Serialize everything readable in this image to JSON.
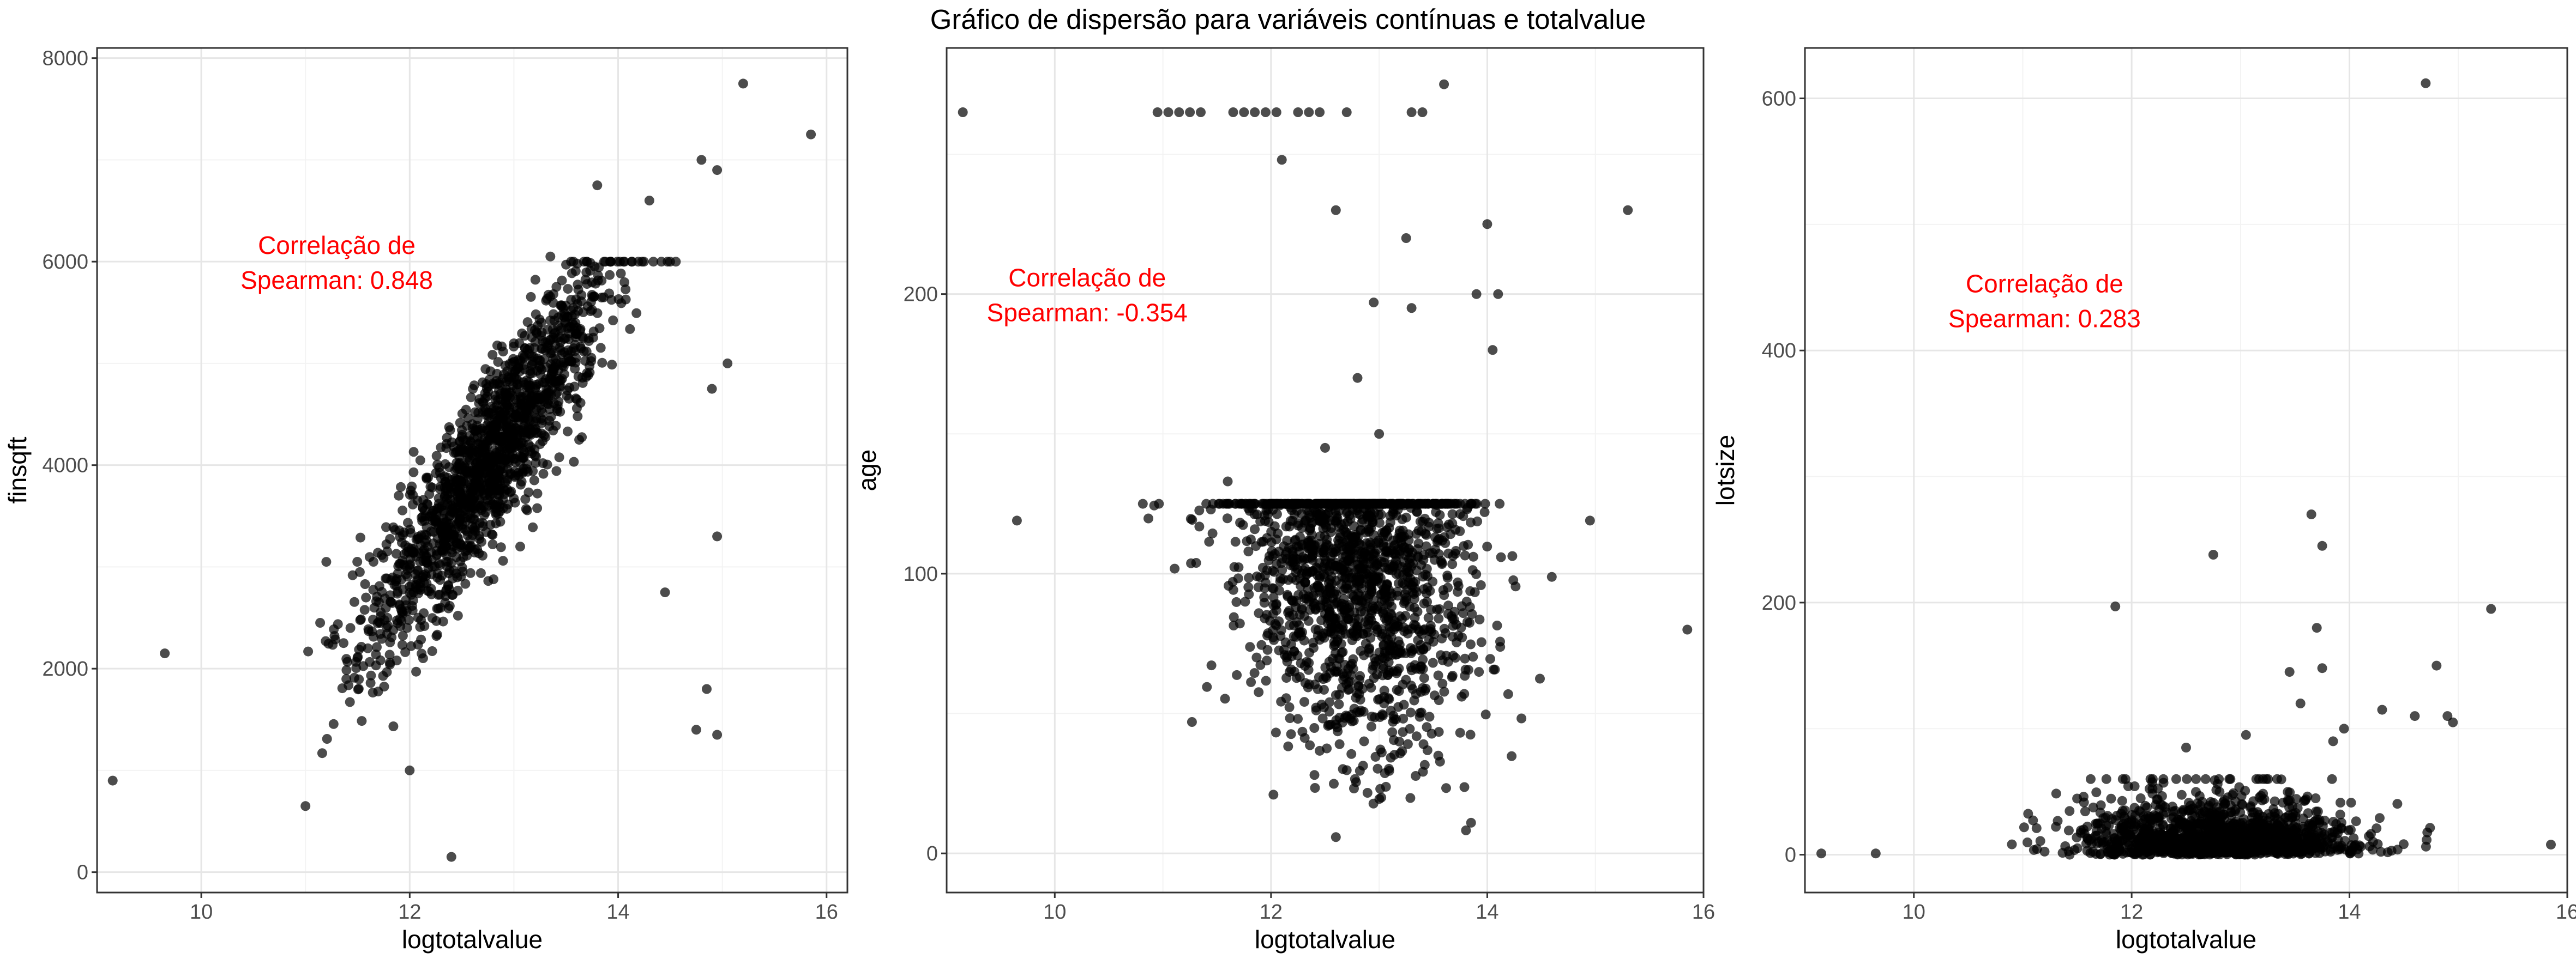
{
  "figure": {
    "title": "Gráfico de dispersão para variáveis contínuas e totalvalue"
  },
  "chart_data": [
    {
      "type": "scatter",
      "xlabel": "logtotalvalue",
      "ylabel": "finsqft",
      "xlim": [
        9.0,
        16.2
      ],
      "ylim": [
        -200,
        8100
      ],
      "xticks": [
        "10",
        "12",
        "14",
        "16"
      ],
      "yticks": [
        "0",
        "2000",
        "4000",
        "6000",
        "8000"
      ],
      "annotation": [
        "Correlação de",
        "Spearman: 0.848"
      ],
      "annotation_pos": [
        11.3,
        6000
      ],
      "outliers": [
        [
          9.15,
          900
        ],
        [
          9.65,
          2150
        ],
        [
          11.2,
          3050
        ],
        [
          13.35,
          6050
        ],
        [
          13.8,
          6750
        ],
        [
          14.3,
          6600
        ],
        [
          14.8,
          7000
        ],
        [
          14.95,
          6900
        ],
        [
          15.2,
          7750
        ],
        [
          15.85,
          7250
        ],
        [
          15.05,
          5000
        ],
        [
          14.9,
          4750
        ],
        [
          14.95,
          3300
        ],
        [
          14.85,
          1800
        ],
        [
          14.95,
          1350
        ],
        [
          14.75,
          1400
        ],
        [
          14.45,
          2750
        ],
        [
          12.0,
          1000
        ],
        [
          12.4,
          150
        ],
        [
          11.0,
          650
        ]
      ],
      "cluster": {
        "n": 1500,
        "x_mean": 12.75,
        "x_sd": 0.6,
        "x_range": [
          10.8,
          15.0
        ],
        "y_base": 1500,
        "y_slope": 1450,
        "y_sd": 430,
        "y_range": [
          250,
          6000
        ]
      },
      "grid": true,
      "marker_color": "#000000",
      "marker_alpha": 0.7
    },
    {
      "type": "scatter",
      "xlabel": "logtotalvalue",
      "ylabel": "age",
      "xlim": [
        9.0,
        16.0
      ],
      "ylim": [
        -14,
        288
      ],
      "xticks": [
        "10",
        "12",
        "14",
        "16"
      ],
      "yticks": [
        "0",
        "100",
        "200"
      ],
      "annotation": [
        "Correlação de",
        "Spearman: -0.354"
      ],
      "annotation_pos": [
        10.3,
        200
      ],
      "outliers": [
        [
          9.15,
          265
        ],
        [
          9.65,
          119
        ],
        [
          10.95,
          265
        ],
        [
          11.05,
          265
        ],
        [
          11.15,
          265
        ],
        [
          11.25,
          265
        ],
        [
          11.35,
          265
        ],
        [
          11.65,
          265
        ],
        [
          11.75,
          265
        ],
        [
          11.85,
          265
        ],
        [
          11.95,
          265
        ],
        [
          12.05,
          265
        ],
        [
          12.25,
          265
        ],
        [
          12.35,
          265
        ],
        [
          12.45,
          265
        ],
        [
          12.7,
          265
        ],
        [
          13.3,
          265
        ],
        [
          13.4,
          265
        ],
        [
          13.6,
          275
        ],
        [
          12.1,
          248
        ],
        [
          12.6,
          230
        ],
        [
          13.25,
          220
        ],
        [
          14.0,
          225
        ],
        [
          15.3,
          230
        ],
        [
          13.9,
          200
        ],
        [
          14.1,
          200
        ],
        [
          14.05,
          180
        ],
        [
          12.95,
          197
        ],
        [
          12.8,
          170
        ],
        [
          14.95,
          119
        ],
        [
          15.85,
          80
        ],
        [
          13.0,
          150
        ],
        [
          13.3,
          195
        ],
        [
          11.6,
          133
        ],
        [
          12.5,
          145
        ]
      ],
      "cluster": {
        "n": 1600,
        "x_mean": 12.8,
        "x_sd": 0.55,
        "x_range": [
          10.8,
          15.1
        ],
        "y_base": 110,
        "y_slope": -6,
        "y_sd": 30,
        "y_range": [
          0,
          125
        ]
      },
      "grid": true,
      "marker_color": "#000000",
      "marker_alpha": 0.7
    },
    {
      "type": "scatter",
      "xlabel": "logtotalvalue",
      "ylabel": "lotsize",
      "xlim": [
        9.0,
        16.0
      ],
      "ylim": [
        -30,
        640
      ],
      "xticks": [
        "10",
        "12",
        "14",
        "16"
      ],
      "yticks": [
        "0",
        "200",
        "400",
        "600"
      ],
      "annotation": [
        "Correlação de",
        "Spearman: 0.283"
      ],
      "annotation_pos": [
        11.2,
        440
      ],
      "outliers": [
        [
          9.15,
          1
        ],
        [
          9.65,
          1
        ],
        [
          14.7,
          612
        ],
        [
          13.65,
          270
        ],
        [
          13.75,
          245
        ],
        [
          12.75,
          238
        ],
        [
          11.85,
          197
        ],
        [
          15.3,
          195
        ],
        [
          14.6,
          110
        ],
        [
          14.9,
          110
        ],
        [
          14.95,
          105
        ],
        [
          13.7,
          180
        ],
        [
          13.75,
          148
        ],
        [
          13.95,
          100
        ],
        [
          13.85,
          90
        ],
        [
          14.3,
          115
        ],
        [
          13.45,
          145
        ],
        [
          13.55,
          120
        ],
        [
          13.05,
          95
        ],
        [
          12.5,
          85
        ],
        [
          14.8,
          150
        ],
        [
          15.85,
          8
        ]
      ],
      "cluster": {
        "n": 1400,
        "x_mean": 12.8,
        "x_sd": 0.6,
        "x_range": [
          10.9,
          15.2
        ],
        "y_base": 0,
        "y_slope": 0,
        "y_sd": 12,
        "y_range": [
          0,
          60
        ]
      },
      "grid": true,
      "marker_color": "#000000",
      "marker_alpha": 0.7
    }
  ]
}
